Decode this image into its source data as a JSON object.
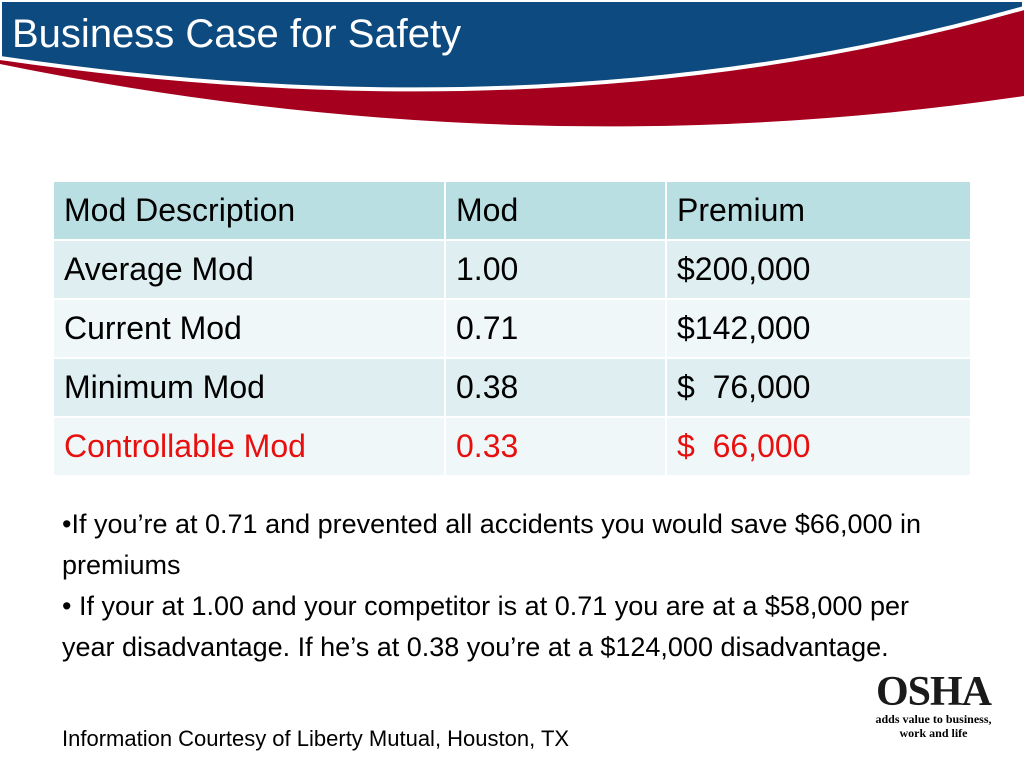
{
  "header": {
    "title": "Business Case for Safety"
  },
  "table": {
    "columns": [
      "Mod Description",
      "Mod",
      "Premium"
    ],
    "rows": [
      [
        "Average Mod",
        "1.00",
        "$200,000"
      ],
      [
        "Current Mod",
        "0.71",
        "$142,000"
      ],
      [
        "Minimum Mod",
        "0.38",
        "$  76,000"
      ],
      [
        "Controllable Mod",
        "0.33",
        "$  66,000"
      ]
    ]
  },
  "bullets": [
    "•If you’re at 0.71 and prevented all accidents you would save $66,000 in premiums",
    "• If your at 1.00 and your competitor is at 0.71 you are at a $58,000 per year disadvantage.  If he’s at 0.38 you’re at a $124,000 disadvantage."
  ],
  "footer": "Information Courtesy of Liberty Mutual, Houston, TX",
  "logo": {
    "name": "OSHA",
    "tagline": [
      "adds value to business,",
      "work and life"
    ]
  }
}
